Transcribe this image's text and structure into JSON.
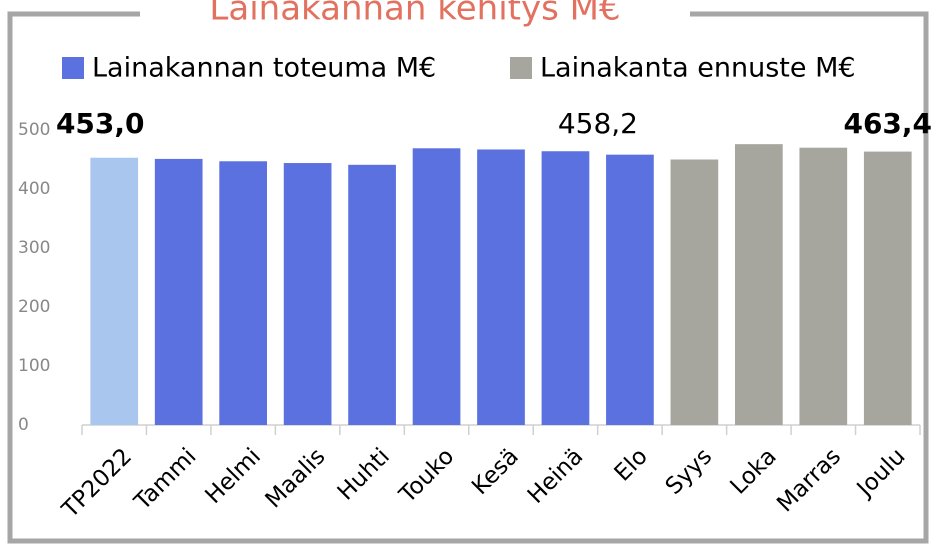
{
  "chart_data": {
    "type": "bar",
    "title": "Lainakannan kehitys M€",
    "categories": [
      "TP2022",
      "Tammi",
      "Helmi",
      "Maalis",
      "Huhti",
      "Touko",
      "Kesä",
      "Heinä",
      "Elo",
      "Syys",
      "Loka",
      "Marras",
      "Joulu"
    ],
    "series": [
      {
        "name": "Lainakannan toteuma M€",
        "color": "#5b71e0",
        "colors": [
          "#a9c6ee",
          "#5b71e0",
          "#5b71e0",
          "#5b71e0",
          "#5b71e0",
          "#5b71e0",
          "#5b71e0",
          "#5b71e0",
          "#5b71e0",
          null,
          null,
          null,
          null
        ],
        "values": [
          453.0,
          451,
          447,
          444,
          441,
          469,
          467,
          464,
          458.2,
          null,
          null,
          null,
          null
        ],
        "value_labels": [
          "453,0",
          null,
          null,
          null,
          null,
          null,
          null,
          null,
          "458,2",
          null,
          null,
          null,
          null
        ]
      },
      {
        "name": "Lainakanta ennuste M€",
        "color": "#a6a69e",
        "values": [
          null,
          null,
          null,
          null,
          null,
          null,
          null,
          null,
          null,
          450,
          476,
          470,
          463.4
        ],
        "value_labels": [
          null,
          null,
          null,
          null,
          null,
          null,
          null,
          null,
          null,
          null,
          null,
          null,
          "463,4"
        ]
      }
    ],
    "ylim": [
      0,
      500
    ],
    "yticks": [
      0,
      100,
      200,
      300,
      400,
      500
    ],
    "grid": false,
    "legend": "top"
  }
}
